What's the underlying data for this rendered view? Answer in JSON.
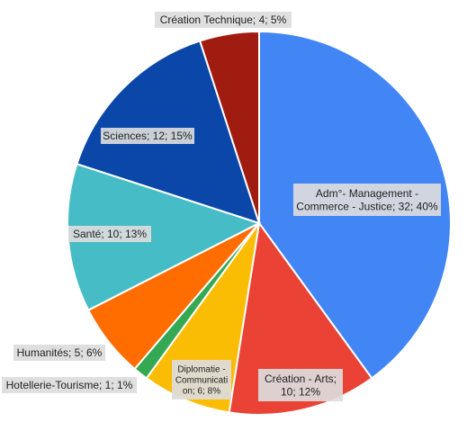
{
  "chart_data": {
    "type": "pie",
    "title": "",
    "start_angle_deg": 0,
    "direction": "clockwise",
    "legend": "none",
    "slices": [
      {
        "label": "Adm°- Management - Commerce - Justice",
        "value": 32,
        "percent": "40%",
        "text": "Adm°- Management - Commerce - Justice; 32; 40%",
        "color": "#4285f4"
      },
      {
        "label": "Création - Arts",
        "value": 10,
        "percent": "12%",
        "text": "Création - Arts; 10; 12%",
        "color": "#ea4335"
      },
      {
        "label": "Diplomatie - Communication",
        "value": 6,
        "percent": "8%",
        "text": "Diplomatie - Communication; 6; 8%",
        "color": "#fbbc04"
      },
      {
        "label": "Hotellerie-Tourisme",
        "value": 1,
        "percent": "1%",
        "text": "Hotellerie-Tourisme; 1; 1%",
        "color": "#34a853"
      },
      {
        "label": "Humanités",
        "value": 5,
        "percent": "6%",
        "text": "Humanités; 5; 6%",
        "color": "#ff6d01"
      },
      {
        "label": "Santé",
        "value": 10,
        "percent": "13%",
        "text": "Santé; 10; 13%",
        "color": "#46bdc6"
      },
      {
        "label": "Sciences",
        "value": 12,
        "percent": "15%",
        "text": "Sciences; 12; 15%",
        "color": "#0b47a8"
      },
      {
        "label": "Création Technique",
        "value": 4,
        "percent": "5%",
        "text": "Création Technique; 4; 5%",
        "color": "#a11c10"
      }
    ]
  }
}
